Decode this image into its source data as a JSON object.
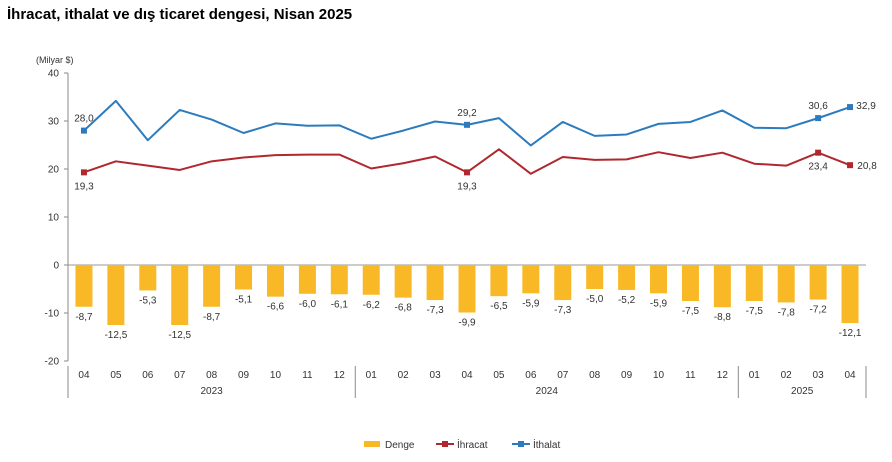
{
  "chart_data": {
    "type": "bar+line",
    "title": "İhracat, ithalat ve dış ticaret dengesi, Nisan 2025",
    "unit_label": "(Milyar $)",
    "ylim": [
      -20,
      40
    ],
    "yticks": [
      "40",
      "30",
      "20",
      "10",
      "0",
      "-10",
      "-20"
    ],
    "categories": [
      "04",
      "05",
      "06",
      "07",
      "08",
      "09",
      "10",
      "11",
      "12",
      "01",
      "02",
      "03",
      "04",
      "05",
      "06",
      "07",
      "08",
      "09",
      "10",
      "11",
      "12",
      "01",
      "02",
      "03",
      "04"
    ],
    "year_groups": [
      {
        "label": "2023",
        "start": 0,
        "end": 8
      },
      {
        "label": "2024",
        "start": 9,
        "end": 20
      },
      {
        "label": "2025",
        "start": 21,
        "end": 24
      }
    ],
    "series": [
      {
        "name": "Denge",
        "type": "bar",
        "color": "#F9B926",
        "values": [
          -8.7,
          -12.5,
          -5.3,
          -12.5,
          -8.7,
          -5.1,
          -6.6,
          -6.0,
          -6.1,
          -6.2,
          -6.8,
          -7.3,
          -9.9,
          -6.5,
          -5.9,
          -7.3,
          -5.0,
          -5.2,
          -5.9,
          -7.5,
          -8.8,
          -7.5,
          -7.8,
          -7.2,
          -12.1
        ],
        "labels": [
          "-8,7",
          "-12,5",
          "-5,3",
          "-12,5",
          "-8,7",
          "-5,1",
          "-6,6",
          "-6,0",
          "-6,1",
          "-6,2",
          "-6,8",
          "-7,3",
          "-9,9",
          "-6,5",
          "-5,9",
          "-7,3",
          "-5,0",
          "-5,2",
          "-5,9",
          "-7,5",
          "-8,8",
          "-7,5",
          "-7,8",
          "-7,2",
          "-12,1"
        ]
      },
      {
        "name": "İhracat",
        "type": "line",
        "color": "#B0282E",
        "values": [
          19.3,
          21.6,
          20.7,
          19.8,
          21.6,
          22.4,
          22.9,
          23.0,
          23.0,
          20.1,
          21.2,
          22.6,
          19.3,
          24.1,
          19.0,
          22.5,
          21.9,
          22.0,
          23.5,
          22.3,
          23.4,
          21.1,
          20.7,
          23.4,
          20.8
        ],
        "point_labels": [
          {
            "index": 0,
            "text": "19,3"
          },
          {
            "index": 12,
            "text": "19,3"
          },
          {
            "index": 23,
            "text": "23,4"
          },
          {
            "index": 24,
            "text": "20,8"
          }
        ]
      },
      {
        "name": "İthalat",
        "type": "line",
        "color": "#2C7BBE",
        "values": [
          28.0,
          34.2,
          26.0,
          32.3,
          30.3,
          27.5,
          29.5,
          29.0,
          29.1,
          26.3,
          28.0,
          29.9,
          29.2,
          30.6,
          24.9,
          29.8,
          26.9,
          27.2,
          29.4,
          29.8,
          32.2,
          28.6,
          28.5,
          30.6,
          32.9
        ],
        "point_labels": [
          {
            "index": 0,
            "text": "28,0"
          },
          {
            "index": 12,
            "text": "29,2"
          },
          {
            "index": 23,
            "text": "30,6"
          },
          {
            "index": 24,
            "text": "32,9"
          }
        ]
      }
    ],
    "legend": {
      "position": "bottom-center",
      "items": [
        "Denge",
        "İhracat",
        "İthalat"
      ]
    },
    "grid": false
  }
}
